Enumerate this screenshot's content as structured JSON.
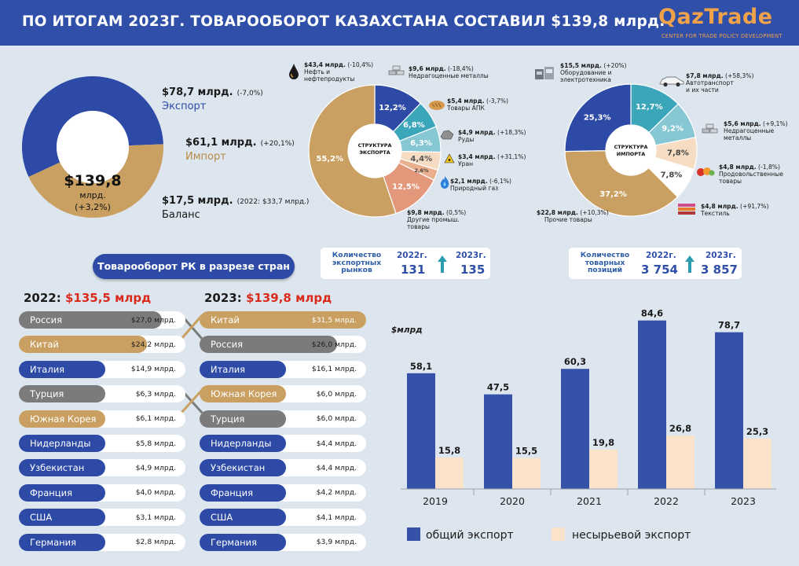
{
  "header": {
    "title": "ПО ИТОГАМ 2023Г. ТОВАРООБОРОТ КАЗАХСТАНА СОСТАВИЛ $139,8 млрд.",
    "logo_text": "QazTrade",
    "logo_subtitle": "CENTER FOR TRADE POLICY DEVELOPMENT"
  },
  "colors": {
    "blue": "#2c4aa6",
    "tan": "#c9a062",
    "teal": "#3ba5b9",
    "light_teal": "#86c7d3",
    "light_tan": "#f6dcc2",
    "salmon": "#e3977b",
    "gray": "#7b7b7b",
    "red": "#d92a1c",
    "page_bg": "#dde6ee",
    "header_bg": "#2f4fa8",
    "logo": "#f0a24a"
  },
  "turnover": {
    "center_value": "$139,8",
    "center_unit": "млрд.",
    "center_change": "(+3,2%)",
    "export_value": "$78,7 млрд.",
    "export_change": "(-7,0%)",
    "export_label": "Экспорт",
    "import_value": "$61,1 млрд.",
    "import_change": "(+20,1%)",
    "import_label": "Импорт",
    "balance_value": "$17,5 млрд.",
    "balance_note": "(2022: $33,7 млрд.)",
    "balance_label": "Баланс"
  },
  "export_structure": {
    "center_label_1": "СТРУКТУРА",
    "center_label_2": "ЭКСПОРТА",
    "items": [
      {
        "value": "$43,4 млрд.",
        "change": "(-10,4%)",
        "name_1": "Нефть и",
        "name_2": "нефтепродукты",
        "icon": "oil-drop-icon"
      },
      {
        "value": "$9,6 млрд.",
        "change": "(-18,4%)",
        "name_1": "Недрагоценные металлы",
        "name_2": "",
        "icon": "metal-bars-icon"
      },
      {
        "value": "$5,4 млрд.",
        "change": "(-3,7%)",
        "name_1": "Товары АПК",
        "name_2": "",
        "icon": "bread-icon"
      },
      {
        "value": "$4,9 млрд.",
        "change": "(+18,3%)",
        "name_1": "Руды",
        "name_2": "",
        "icon": "ore-icon"
      },
      {
        "value": "$3,4 млрд.",
        "change": "(+31,1%)",
        "name_1": "Уран",
        "name_2": "",
        "icon": "radiation-icon"
      },
      {
        "value": "$2,1 млрд.",
        "change": "(-6,1%)",
        "name_1": "Природный газ",
        "name_2": "",
        "icon": "gas-flame-icon"
      },
      {
        "value": "$9,8 млрд.",
        "change": "(0,5%)",
        "name_1": "Другие промыш.",
        "name_2": "товары",
        "icon": ""
      }
    ]
  },
  "import_structure": {
    "center_label_1": "СТРУКТУРА",
    "center_label_2": "ИМПОРТА",
    "items": [
      {
        "value": "$15,5 млрд.",
        "change": "(+20%)",
        "name_1": "Оборудование и",
        "name_2": "электротехника",
        "icon": "machinery-icon"
      },
      {
        "value": "$7,8 млрд.",
        "change": "(+58,3%)",
        "name_1": "Автотранспорт",
        "name_2": "и их части",
        "icon": "car-icon"
      },
      {
        "value": "$5,6 млрд.",
        "change": "(+9,1%)",
        "name_1": "Недрагоценные",
        "name_2": "металлы",
        "icon": "metal-bars-icon"
      },
      {
        "value": "$4,8 млрд.",
        "change": "(-1,8%)",
        "name_1": "Продовольственные",
        "name_2": "товары",
        "icon": "food-icon"
      },
      {
        "value": "$4,8 млрд.",
        "change": "(+91,7%)",
        "name_1": "Текстиль",
        "name_2": "",
        "icon": "textile-icon"
      },
      {
        "value": "$22,8 млрд.",
        "change": "(+10,3%)",
        "name_1": "Прочие товары",
        "name_2": "",
        "icon": ""
      }
    ]
  },
  "markets": {
    "label_1": "Количество",
    "label_2": "экспортных",
    "label_3": "рынков",
    "year_a": "2022г.",
    "value_a": "131",
    "year_b": "2023г.",
    "value_b": "135"
  },
  "positions": {
    "label_1": "Количество",
    "label_2": "товарных",
    "label_3": "позиций",
    "year_a": "2022г.",
    "value_a": "3 754",
    "year_b": "2023г.",
    "value_b": "3 857"
  },
  "countries": {
    "header": "Товарооборот РК в разрезе стран",
    "left_year": "2022:",
    "left_total": "$135,5 млрд",
    "right_year": "2023:",
    "right_total": "$139,8 млрд",
    "left_rows": [
      {
        "name": "Россия",
        "value": "$27,0 млрд.",
        "amount": 27.0,
        "color": "gray"
      },
      {
        "name": "Китай",
        "value": "$24,2 млрд.",
        "amount": 24.2,
        "color": "tan"
      },
      {
        "name": "Италия",
        "value": "$14,9 млрд.",
        "amount": 14.9,
        "color": "blue"
      },
      {
        "name": "Турция",
        "value": "$6,3 млрд.",
        "amount": 6.3,
        "color": "gray"
      },
      {
        "name": "Южная Корея",
        "value": "$6,1 млрд.",
        "amount": 6.1,
        "color": "tan"
      },
      {
        "name": "Нидерланды",
        "value": "$5,8 млрд.",
        "amount": 5.8,
        "color": "blue"
      },
      {
        "name": "Узбекистан",
        "value": "$4,9 млрд.",
        "amount": 4.9,
        "color": "blue"
      },
      {
        "name": "Франция",
        "value": "$4,0 млрд.",
        "amount": 4.0,
        "color": "blue"
      },
      {
        "name": "США",
        "value": "$3,1 млрд.",
        "amount": 3.1,
        "color": "blue"
      },
      {
        "name": "Германия",
        "value": "$2,8 млрд.",
        "amount": 2.8,
        "color": "blue"
      }
    ],
    "right_rows": [
      {
        "name": "Китай",
        "value": "$31,5 млрд.",
        "amount": 31.5,
        "color": "tan"
      },
      {
        "name": "Россия",
        "value": "$26,0 млрд.",
        "amount": 26.0,
        "color": "gray"
      },
      {
        "name": "Италия",
        "value": "$16,1 млрд.",
        "amount": 16.1,
        "color": "blue"
      },
      {
        "name": "Южная Корея",
        "value": "$6,0 млрд.",
        "amount": 6.0,
        "color": "tan"
      },
      {
        "name": "Турция",
        "value": "$6,0 млрд.",
        "amount": 6.0,
        "color": "gray"
      },
      {
        "name": "Нидерланды",
        "value": "$4,4 млрд.",
        "amount": 4.4,
        "color": "blue"
      },
      {
        "name": "Узбекистан",
        "value": "$4,4 млрд.",
        "amount": 4.4,
        "color": "blue"
      },
      {
        "name": "Франция",
        "value": "$4,2 млрд.",
        "amount": 4.2,
        "color": "blue"
      },
      {
        "name": "США",
        "value": "$4,1 млрд.",
        "amount": 4.1,
        "color": "blue"
      },
      {
        "name": "Германия",
        "value": "$3,9 млрд.",
        "amount": 3.9,
        "color": "blue"
      }
    ]
  },
  "chart_data": [
    {
      "type": "pie",
      "style": "donut",
      "labels": [
        "Экспорт",
        "Импорт"
      ],
      "values": [
        78.7,
        61.1
      ],
      "colors": [
        "#2c4aa6",
        "#c9a062"
      ]
    },
    {
      "type": "pie",
      "style": "donut",
      "title": "СТРУКТУРА ЭКСПОРТА",
      "labels": [
        "Недрагоценные металлы",
        "Товары АПК",
        "Руды",
        "Уран",
        "Природный газ",
        "Другие промыш. товары",
        "Нефть и нефтепродукты"
      ],
      "values": [
        12.2,
        6.8,
        6.3,
        4.4,
        2.6,
        12.5,
        55.2
      ],
      "value_labels": [
        "12,2%",
        "6,8%",
        "6,3%",
        "4,4%",
        "2,6%",
        "12,5%",
        "55,2%"
      ],
      "colors": [
        "#2c4aa6",
        "#3ba5b9",
        "#86c7d3",
        "#f6dcc2",
        "#eab08e",
        "#e3977b",
        "#c9a062"
      ]
    },
    {
      "type": "pie",
      "style": "donut",
      "title": "СТРУКТУРА ИМПОРТА",
      "labels": [
        "Автотранспорт и их части",
        "Недрагоценные металлы",
        "Продовольственные товары",
        "Текстиль",
        "Прочие товары",
        "Оборудование и электротехника"
      ],
      "values": [
        12.7,
        9.2,
        7.8,
        7.8,
        37.2,
        25.3
      ],
      "value_labels": [
        "12,7%",
        "9,2%",
        "7,8%",
        "7,8%",
        "37,2%",
        "25,3%"
      ],
      "colors": [
        "#3ba5b9",
        "#86c7d3",
        "#f6dcc2",
        "#ffffff",
        "#c9a062",
        "#2c4aa6"
      ]
    },
    {
      "type": "bar",
      "ylabel": "$млрд",
      "categories": [
        "2019",
        "2020",
        "2021",
        "2022",
        "2023"
      ],
      "series": [
        {
          "name": "общий экспорт",
          "values": [
            58.1,
            47.5,
            60.3,
            84.6,
            78.7
          ],
          "labels": [
            "58,1",
            "47,5",
            "60,3",
            "84,6",
            "78,7"
          ],
          "color": "#3551a8"
        },
        {
          "name": "несырьевой экспорт",
          "values": [
            15.8,
            15.5,
            19.8,
            26.8,
            25.3
          ],
          "labels": [
            "15,8",
            "15,5",
            "19,8",
            "26,8",
            "25,3"
          ],
          "color": "#fbe3cb"
        }
      ],
      "ylim": [
        0,
        90
      ]
    }
  ]
}
